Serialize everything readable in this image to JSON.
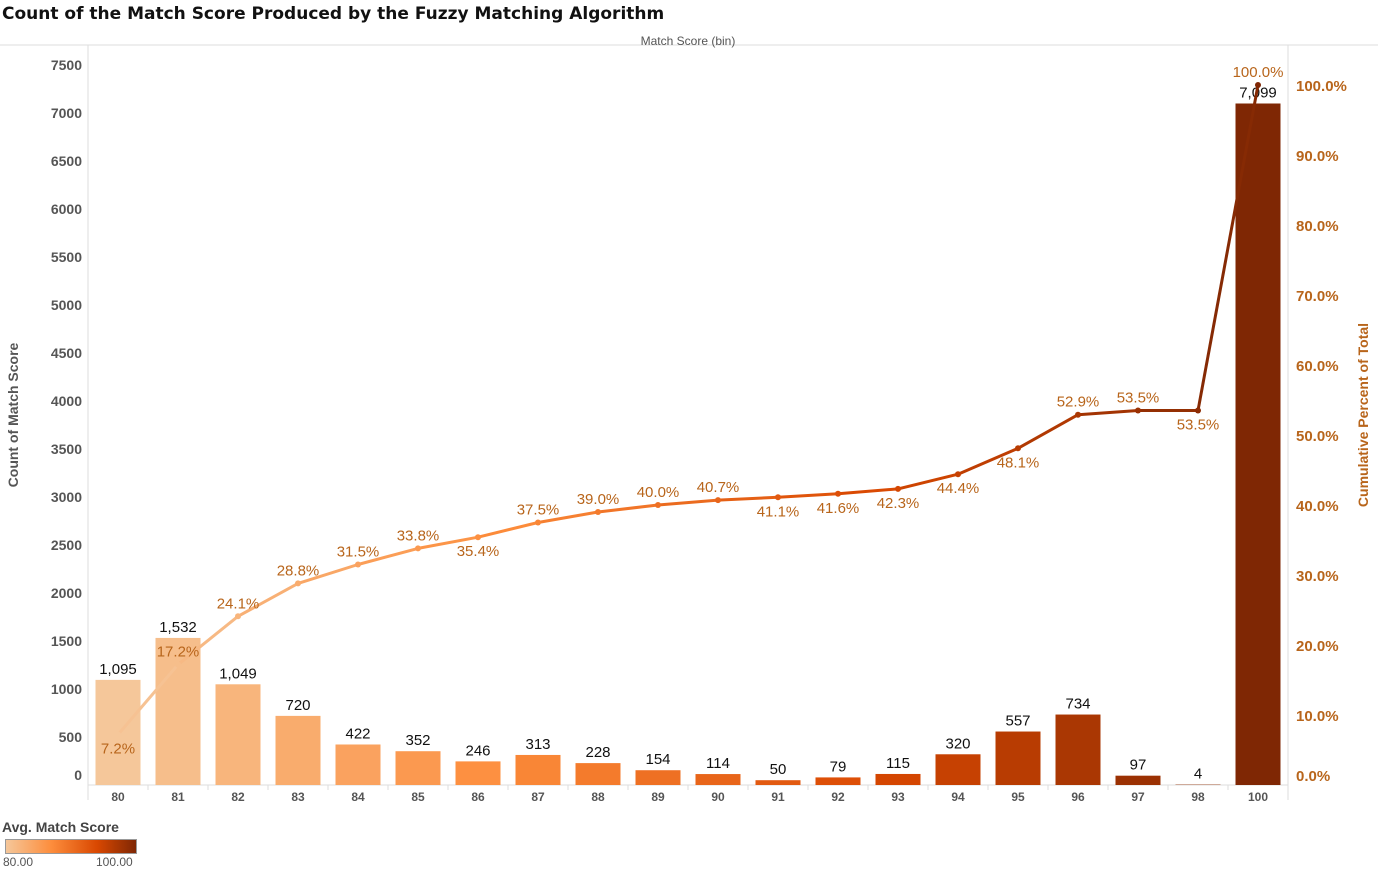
{
  "chart_data": {
    "type": "bar",
    "title": "Count of the Match Score Produced by the Fuzzy Matching Algorithm",
    "top_axis_label": "Match Score (bin)",
    "ylabel": "Count of Match Score",
    "y2label": "Cumulative Percent of Total",
    "ylim": [
      0,
      7500
    ],
    "y2lim": [
      0,
      100
    ],
    "yticks": [
      "0",
      "500",
      "1000",
      "1500",
      "2000",
      "2500",
      "3000",
      "3500",
      "4000",
      "4500",
      "5000",
      "5500",
      "6000",
      "6500",
      "7000",
      "7500"
    ],
    "y2ticks": [
      "0.0%",
      "10.0%",
      "20.0%",
      "30.0%",
      "40.0%",
      "50.0%",
      "60.0%",
      "70.0%",
      "80.0%",
      "90.0%",
      "100.0%"
    ],
    "categories": [
      "80",
      "81",
      "82",
      "83",
      "84",
      "85",
      "86",
      "87",
      "88",
      "89",
      "90",
      "91",
      "92",
      "93",
      "94",
      "95",
      "96",
      "97",
      "98",
      "100"
    ],
    "series": [
      {
        "type": "bar",
        "values": [
          1095,
          1532,
          1049,
          720,
          422,
          352,
          246,
          313,
          228,
          154,
          114,
          50,
          79,
          115,
          320,
          557,
          734,
          97,
          4,
          7099
        ],
        "labels": [
          "1,095",
          "1,532",
          "1,049",
          "720",
          "422",
          "352",
          "246",
          "313",
          "228",
          "154",
          "114",
          "50",
          "79",
          "115",
          "320",
          "557",
          "734",
          "97",
          "4",
          "7,099"
        ]
      },
      {
        "type": "line",
        "values": [
          7.2,
          17.2,
          24.1,
          28.8,
          31.5,
          33.8,
          35.4,
          37.5,
          39.0,
          40.0,
          40.7,
          41.1,
          41.6,
          42.3,
          44.4,
          48.1,
          52.9,
          53.5,
          53.5,
          100.0
        ],
        "labels": [
          "7.2%",
          "17.2%",
          "24.1%",
          "28.8%",
          "31.5%",
          "33.8%",
          "35.4%",
          "37.5%",
          "39.0%",
          "40.0%",
          "40.7%",
          "41.1%",
          "41.6%",
          "42.3%",
          "44.4%",
          "48.1%",
          "52.9%",
          "53.5%",
          "53.5%",
          "100.0%"
        ]
      }
    ],
    "color_legend": {
      "title": "Avg. Match Score",
      "min": "80.00",
      "max": "100.00",
      "colors": [
        "#f5c79a",
        "#fd8d3c",
        "#d94801",
        "#7f2704"
      ]
    },
    "grid": false
  }
}
